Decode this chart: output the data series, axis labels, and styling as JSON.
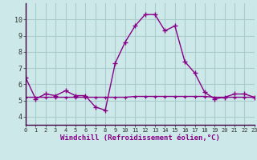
{
  "xlabel": "Windchill (Refroidissement éolien,°C)",
  "bg_color": "#cce8e8",
  "grid_color": "#aacccc",
  "line_color": "#880088",
  "x_values": [
    0,
    1,
    2,
    3,
    4,
    5,
    6,
    7,
    8,
    9,
    10,
    11,
    12,
    13,
    14,
    15,
    16,
    17,
    18,
    19,
    20,
    21,
    22,
    23
  ],
  "y_curve": [
    6.4,
    5.1,
    5.4,
    5.3,
    5.6,
    5.3,
    5.3,
    4.6,
    4.4,
    7.3,
    8.6,
    9.6,
    10.3,
    10.3,
    9.3,
    9.6,
    7.4,
    6.7,
    5.5,
    5.1,
    5.2,
    5.4,
    5.4,
    5.2
  ],
  "y_flat": [
    5.2,
    5.2,
    5.2,
    5.2,
    5.2,
    5.2,
    5.2,
    5.2,
    5.2,
    5.2,
    5.2,
    5.25,
    5.25,
    5.25,
    5.25,
    5.25,
    5.25,
    5.25,
    5.25,
    5.2,
    5.2,
    5.2,
    5.2,
    5.2
  ],
  "ylim": [
    3.5,
    11.0
  ],
  "yticks": [
    4,
    5,
    6,
    7,
    8,
    9,
    10
  ],
  "xlim": [
    0,
    23
  ]
}
